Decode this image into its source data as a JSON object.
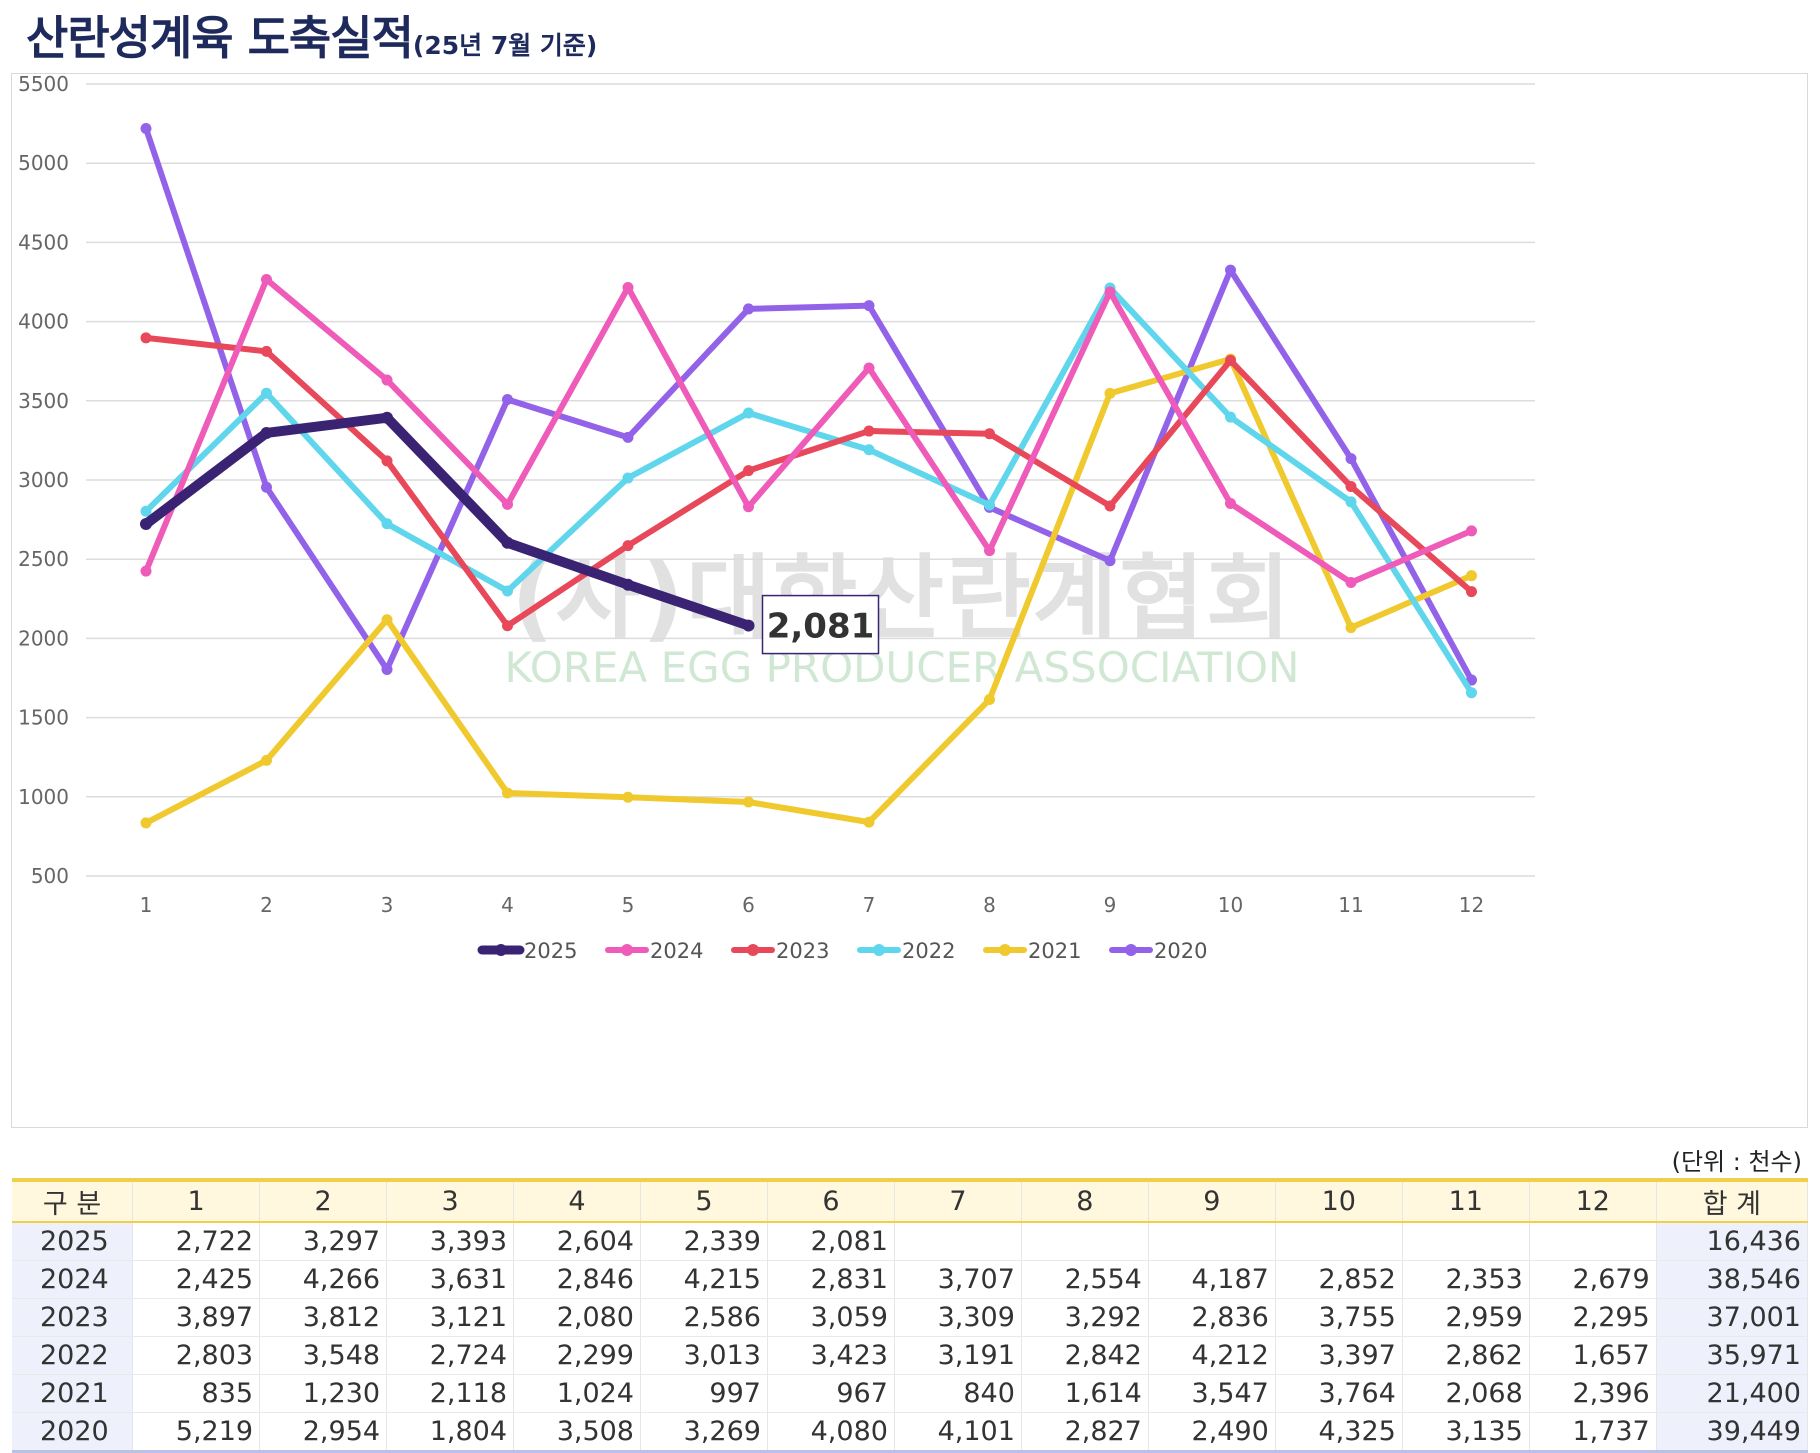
{
  "title": {
    "main": "산란성계육 도축실적",
    "sub": "(25년 7월 기준)"
  },
  "unit_label": "(단위 : 천수)",
  "watermark": {
    "line1": "(사)대한산란계협회",
    "line2": "KOREA EGG PRODUCER ASSOCIATION"
  },
  "chart_data": {
    "type": "line",
    "title": "",
    "x": [
      "1",
      "2",
      "3",
      "4",
      "5",
      "6",
      "7",
      "8",
      "9",
      "10",
      "11",
      "12"
    ],
    "ylim": [
      500,
      5500
    ],
    "yticks": [
      500,
      1000,
      1500,
      2000,
      2500,
      3000,
      3500,
      4000,
      4500,
      5000,
      5500
    ],
    "grid": true,
    "legend_position": "bottom",
    "callout": {
      "series": "2025",
      "label": "2,081"
    },
    "series": [
      {
        "name": "2025",
        "color": "#3a2373",
        "values": [
          2722,
          3297,
          3393,
          2604,
          2339,
          2081,
          null,
          null,
          null,
          null,
          null,
          null
        ]
      },
      {
        "name": "2024",
        "color": "#ee5bb8",
        "values": [
          2425,
          4266,
          3631,
          2846,
          4215,
          2831,
          3707,
          2554,
          4187,
          2852,
          2353,
          2679
        ]
      },
      {
        "name": "2023",
        "color": "#e8495a",
        "values": [
          3897,
          3812,
          3121,
          2080,
          2586,
          3059,
          3309,
          3292,
          2836,
          3755,
          2959,
          2295
        ]
      },
      {
        "name": "2022",
        "color": "#5fd6ec",
        "values": [
          2803,
          3548,
          2724,
          2299,
          3013,
          3423,
          3191,
          2842,
          4212,
          3397,
          2862,
          1657
        ]
      },
      {
        "name": "2021",
        "color": "#f0c92e",
        "values": [
          835,
          1230,
          2118,
          1024,
          997,
          967,
          840,
          1614,
          3547,
          3764,
          2068,
          2396
        ]
      },
      {
        "name": "2020",
        "color": "#9263e8",
        "values": [
          5219,
          2954,
          1804,
          3508,
          3269,
          4080,
          4101,
          2827,
          2490,
          4325,
          3135,
          1737
        ]
      }
    ]
  },
  "table": {
    "headers": [
      "구 분",
      "1",
      "2",
      "3",
      "4",
      "5",
      "6",
      "7",
      "8",
      "9",
      "10",
      "11",
      "12",
      "합 계"
    ],
    "rows": [
      [
        "2025",
        "2,722",
        "3,297",
        "3,393",
        "2,604",
        "2,339",
        "2,081",
        "",
        "",
        "",
        "",
        "",
        "",
        "16,436"
      ],
      [
        "2024",
        "2,425",
        "4,266",
        "3,631",
        "2,846",
        "4,215",
        "2,831",
        "3,707",
        "2,554",
        "4,187",
        "2,852",
        "2,353",
        "2,679",
        "38,546"
      ],
      [
        "2023",
        "3,897",
        "3,812",
        "3,121",
        "2,080",
        "2,586",
        "3,059",
        "3,309",
        "3,292",
        "2,836",
        "3,755",
        "2,959",
        "2,295",
        "37,001"
      ],
      [
        "2022",
        "2,803",
        "3,548",
        "2,724",
        "2,299",
        "3,013",
        "3,423",
        "3,191",
        "2,842",
        "4,212",
        "3,397",
        "2,862",
        "1,657",
        "35,971"
      ],
      [
        "2021",
        "835",
        "1,230",
        "2,118",
        "1,024",
        "997",
        "967",
        "840",
        "1,614",
        "3,547",
        "3,764",
        "2,068",
        "2,396",
        "21,400"
      ],
      [
        "2020",
        "5,219",
        "2,954",
        "1,804",
        "3,508",
        "3,269",
        "4,080",
        "4,101",
        "2,827",
        "2,490",
        "4,325",
        "3,135",
        "1,737",
        "39,449"
      ]
    ]
  }
}
